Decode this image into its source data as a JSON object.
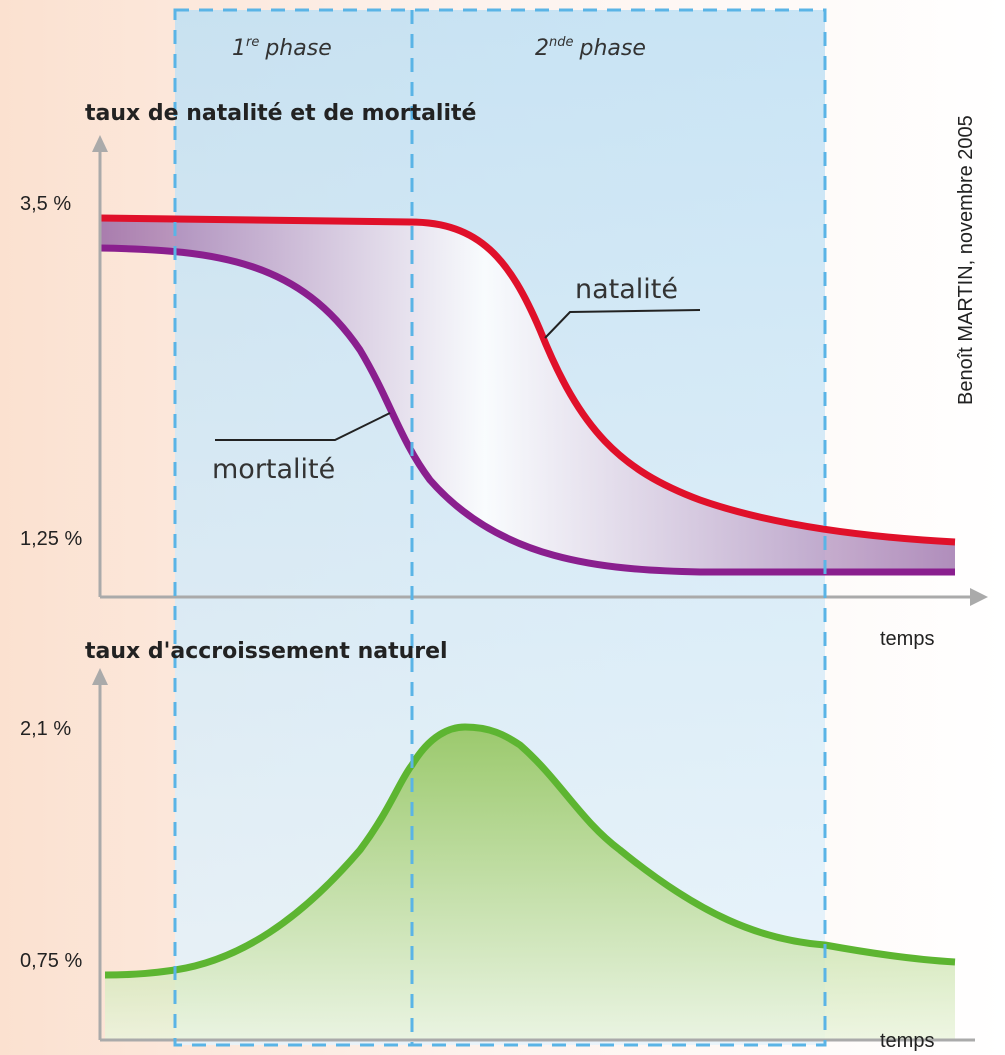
{
  "credit": "Benoît MARTIN, novembre 2005",
  "phases": [
    {
      "number": "1",
      "suffix": "re",
      "label": "phase"
    },
    {
      "number": "2",
      "suffix": "nde",
      "label": "phase"
    }
  ],
  "top_chart": {
    "title": "taux de natalité et de mortalité",
    "y_labels": [
      "3,5 %",
      "1,25 %"
    ],
    "x_label": "temps",
    "curves": [
      "natalité",
      "mortalité"
    ]
  },
  "bottom_chart": {
    "title": "taux d'accroissement naturel",
    "y_labels": [
      "2,1 %",
      "0,75 %"
    ],
    "x_label": "temps"
  }
}
